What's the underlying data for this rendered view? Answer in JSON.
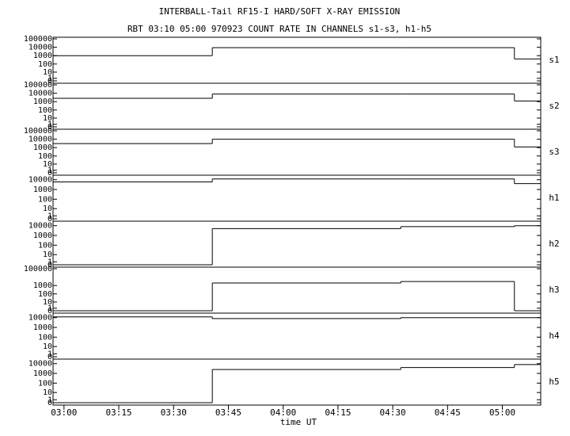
{
  "chart_data": {
    "type": "step",
    "yscale": "log1p",
    "title": "INTERBALL-Tail RF15-I HARD/SOFT X-RAY EMISSION",
    "subtitle": "RBT 03:10 05:00 970923  COUNT RATE IN CHANNELS s1-s3, h1-h5",
    "xlabel": "time UT",
    "xlim": [
      177,
      310.5
    ],
    "xticks": [
      {
        "value": 180,
        "label": "03:00"
      },
      {
        "value": 195,
        "label": "03:15"
      },
      {
        "value": 210,
        "label": "03:30"
      },
      {
        "value": 225,
        "label": "03:45"
      },
      {
        "value": 240,
        "label": "04:00"
      },
      {
        "value": 255,
        "label": "04:15"
      },
      {
        "value": 270,
        "label": "04:30"
      },
      {
        "value": 285,
        "label": "04:45"
      },
      {
        "value": 300,
        "label": "05:00"
      }
    ],
    "bins": [
      177,
      220.6,
      272.2,
      303.3,
      310.5
    ],
    "color": "#000000",
    "panels": [
      {
        "name": "s1",
        "ylim": [
          0,
          100000
        ],
        "yticks": [
          100000,
          10000,
          1000,
          100,
          10,
          1,
          0
        ],
        "values": [
          1000,
          9000,
          9000,
          400
        ]
      },
      {
        "name": "s2",
        "ylim": [
          0,
          100000
        ],
        "yticks": [
          100000,
          10000,
          1000,
          100,
          10,
          1,
          0
        ],
        "values": [
          2500,
          8000,
          8000,
          1200
        ]
      },
      {
        "name": "s3",
        "ylim": [
          0,
          100000
        ],
        "yticks": [
          100000,
          10000,
          1000,
          100,
          10,
          1,
          0
        ],
        "values": [
          3000,
          10000,
          10000,
          1200
        ]
      },
      {
        "name": "h1",
        "ylim": [
          0,
          20000
        ],
        "yticks": [
          10000,
          1000,
          100,
          10,
          1,
          0
        ],
        "values": [
          6000,
          12000,
          12000,
          4000
        ]
      },
      {
        "name": "h2",
        "ylim": [
          0,
          20000
        ],
        "yticks": [
          10000,
          1000,
          100,
          10,
          1,
          0
        ],
        "values": [
          0,
          5000,
          8000,
          10000
        ]
      },
      {
        "name": "h3",
        "ylim": [
          0,
          100000
        ],
        "yticks": [
          100000,
          1000,
          100,
          10,
          1,
          0
        ],
        "values": [
          0,
          2000,
          3000,
          0
        ]
      },
      {
        "name": "h4",
        "ylim": [
          0,
          20000
        ],
        "yticks": [
          10000,
          1000,
          100,
          10,
          1,
          0
        ],
        "values": [
          12000,
          8000,
          10000,
          10000
        ]
      },
      {
        "name": "h5",
        "ylim": [
          0,
          20000
        ],
        "yticks": [
          10000,
          1000,
          100,
          10,
          1,
          0
        ],
        "values": [
          0,
          2500,
          4000,
          8000
        ]
      }
    ]
  }
}
